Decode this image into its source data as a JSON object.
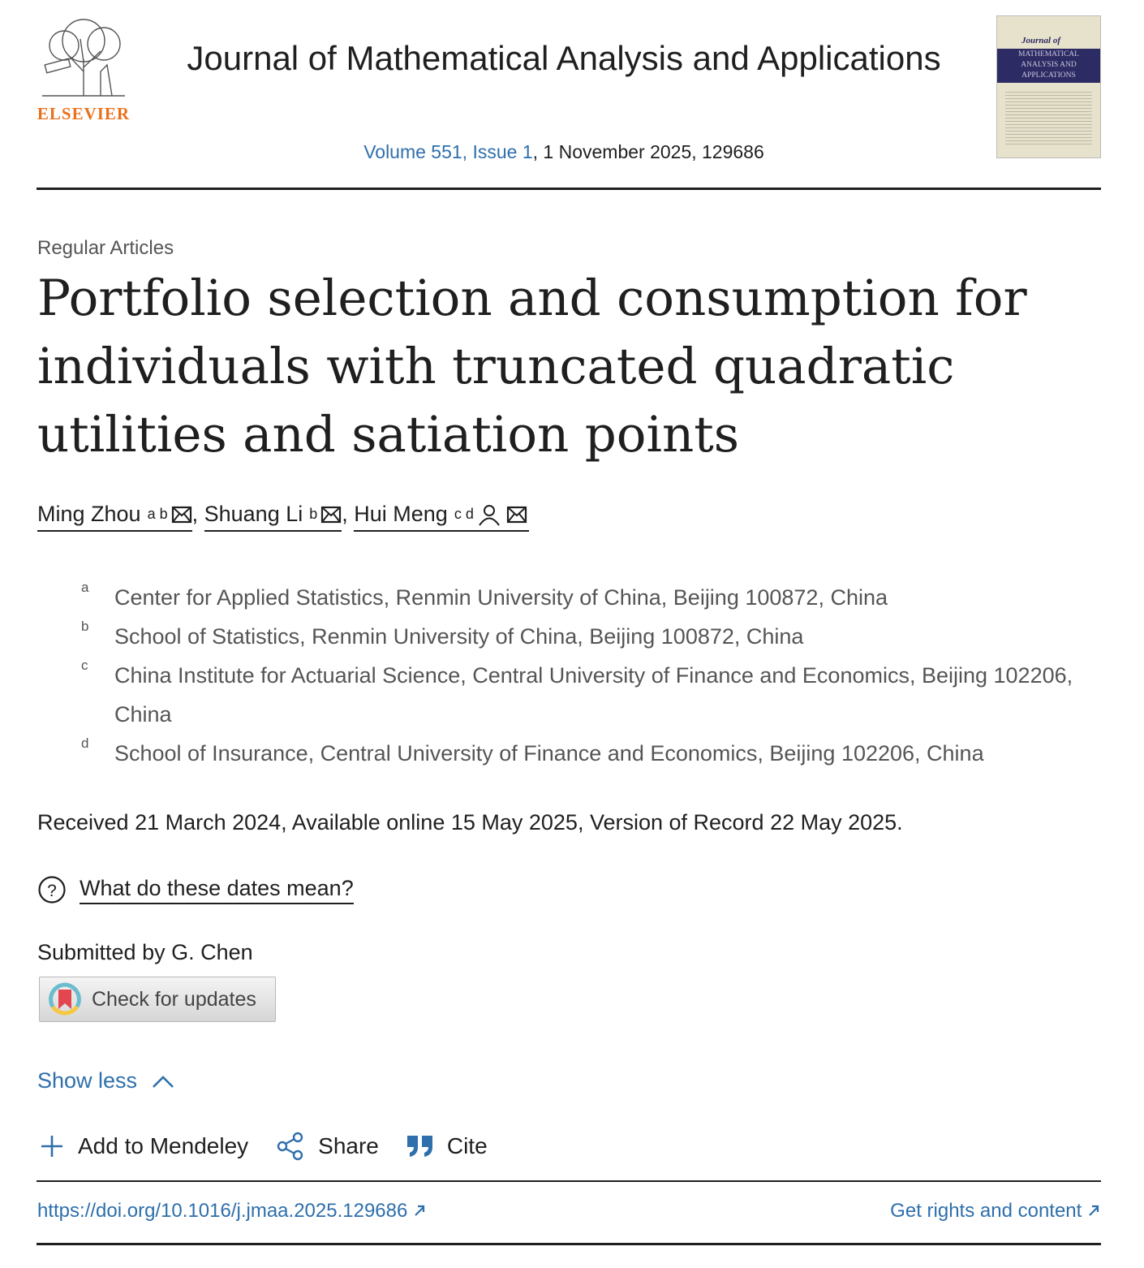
{
  "header": {
    "publisher": "ELSEVIER",
    "journal_title": "Journal of Mathematical Analysis and Applications",
    "volume_issue": "Volume 551, Issue 1",
    "issue_date": ", 1 November 2025, 129686",
    "cover": {
      "script_title": "Journal of",
      "title_lines": [
        "MATHEMATICAL",
        "ANALYSIS AND",
        "APPLICATIONS"
      ]
    }
  },
  "article": {
    "section": "Regular Articles",
    "title": "Portfolio selection and consumption for individuals with truncated quadratic utilities and satiation points",
    "authors": [
      {
        "name": "Ming Zhou",
        "affs": "a b",
        "icons": [
          "mail-icon"
        ]
      },
      {
        "name": "Shuang Li",
        "affs": "b",
        "icons": [
          "mail-icon"
        ]
      },
      {
        "name": "Hui Meng",
        "affs": "c d",
        "icons": [
          "person-icon",
          "mail-icon"
        ]
      }
    ],
    "affiliations": [
      {
        "label": "a",
        "text": "Center for Applied Statistics, Renmin University of China, Beijing 100872, China"
      },
      {
        "label": "b",
        "text": "School of Statistics, Renmin University of China, Beijing 100872, China"
      },
      {
        "label": "c",
        "text": "China Institute for Actuarial Science, Central University of Finance and Economics, Beijing 102206, China"
      },
      {
        "label": "d",
        "text": "School of Insurance, Central University of Finance and Economics, Beijing 102206, China"
      }
    ],
    "dates": "Received 21 March 2024, Available online 15 May 2025, Version of Record 22 May 2025.",
    "dates_help": "What do these dates mean?",
    "submitted_by": "Submitted by G. Chen",
    "check_updates": "Check for updates",
    "show_less": "Show less",
    "actions": {
      "mendeley": "Add to Mendeley",
      "share": "Share",
      "cite": "Cite"
    },
    "doi": "https://doi.org/10.1016/j.jmaa.2025.129686",
    "rights": "Get rights and content"
  },
  "colors": {
    "link": "#2e6fac",
    "publisher": "#e9711c",
    "cover_band": "#2d2b63"
  }
}
